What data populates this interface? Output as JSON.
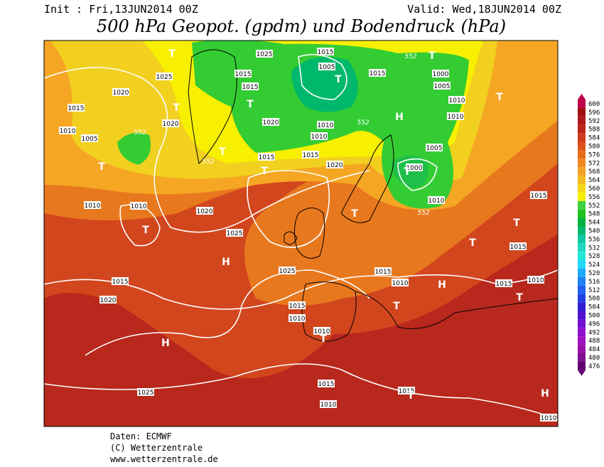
{
  "header": {
    "init": "Init : Fri,13JUN2014 00Z",
    "valid": "Valid: Wed,18JUN2014 00Z",
    "title": "500 hPa Geopot. (gpdm) und Bodendruck (hPa)"
  },
  "legend": {
    "levels": [
      600,
      596,
      592,
      588,
      584,
      580,
      576,
      572,
      568,
      564,
      560,
      556,
      552,
      548,
      544,
      540,
      536,
      532,
      528,
      524,
      520,
      516,
      512,
      508,
      504,
      500,
      496,
      492,
      488,
      484,
      480,
      476
    ]
  },
  "map": {
    "pressure_labels": [
      "1025",
      "1015",
      "1005",
      "1015",
      "1015",
      "1015",
      "1000",
      "1005",
      "1010",
      "1010",
      "1025",
      "1020",
      "1015",
      "1020",
      "1010",
      "1005",
      "1020",
      "1010",
      "1010",
      "1015",
      "1015",
      "1020",
      "1005",
      "1000",
      "1010",
      "1010",
      "1020",
      "1025",
      "1010",
      "1015",
      "1015",
      "1025",
      "1015",
      "1010",
      "1015",
      "1015",
      "1010",
      "1020",
      "1015",
      "1010",
      "1010",
      "1015",
      "1015",
      "1010",
      "1025",
      "1010"
    ],
    "contour_labels": [
      "552",
      "552",
      "552",
      "552",
      "552"
    ],
    "center_labels": [
      "T",
      "T",
      "T",
      "T",
      "T",
      "H",
      "T",
      "T",
      "T",
      "T",
      "T",
      "T",
      "T",
      "H",
      "T",
      "T",
      "H",
      "T",
      "T",
      "H",
      "T",
      "T",
      "H"
    ]
  },
  "footer": {
    "lines": [
      "Daten: ECMWF",
      "(C) Wetterzentrale",
      "www.wetterzentrale.de"
    ]
  }
}
